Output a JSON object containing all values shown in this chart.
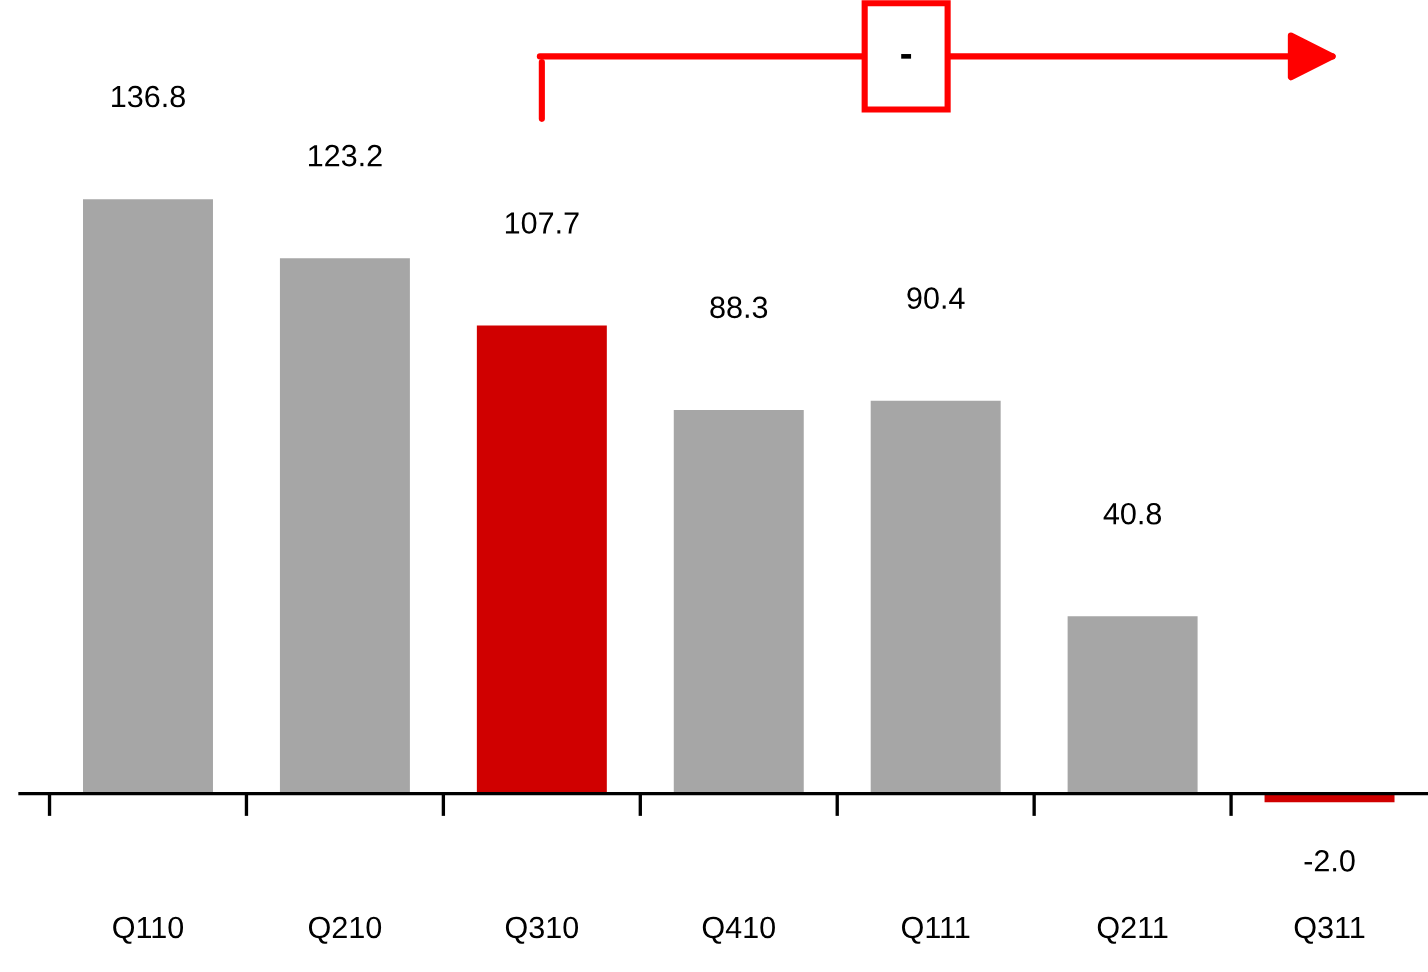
{
  "chart_data": {
    "type": "bar",
    "categories": [
      "Q110",
      "Q210",
      "Q310",
      "Q410",
      "Q111",
      "Q211",
      "Q311"
    ],
    "values": [
      136.8,
      123.2,
      107.7,
      88.3,
      90.4,
      40.8,
      -2.0
    ],
    "colors": [
      "#a6a6a6",
      "#a6a6a6",
      "#d00000",
      "#a6a6a6",
      "#a6a6a6",
      "#a6a6a6",
      "#d00000"
    ],
    "value_labels": [
      "136.8",
      "123.2",
      "107.7",
      "88.3",
      "90.4",
      "40.8",
      "-2.0"
    ],
    "annotations": [
      "-"
    ],
    "grid": false,
    "legend": false
  }
}
